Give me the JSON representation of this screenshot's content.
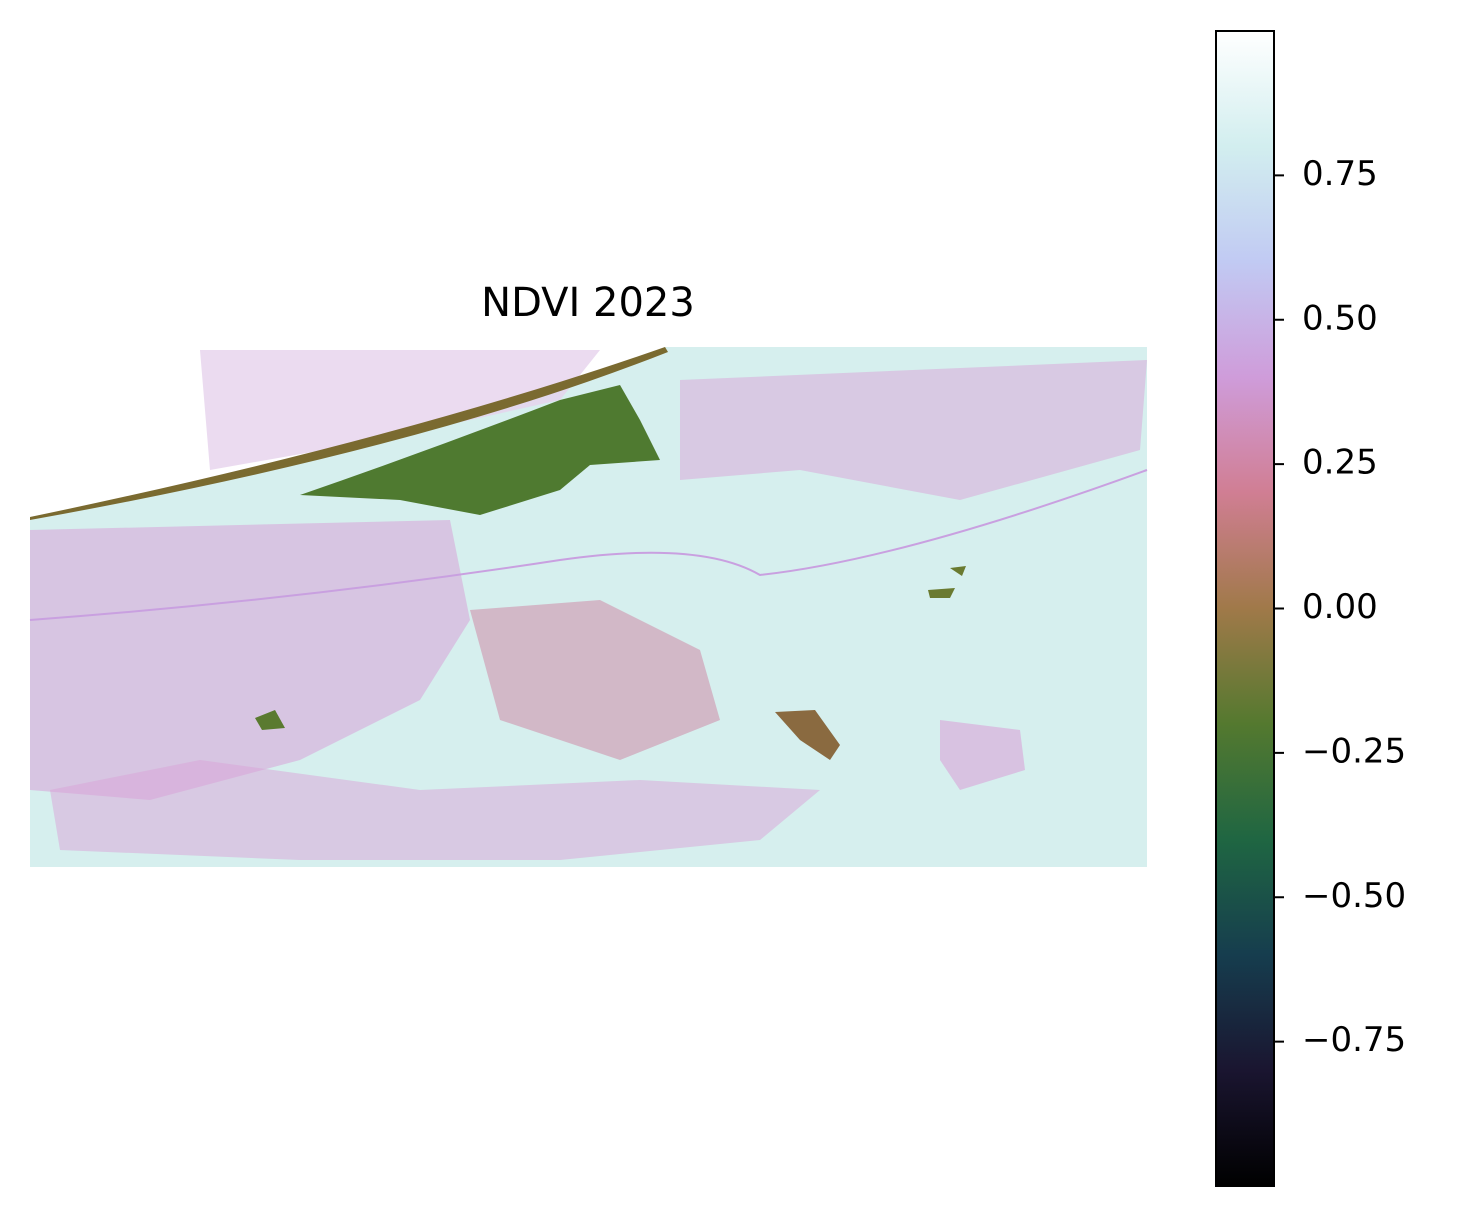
{
  "chart_data": {
    "type": "image",
    "title": "NDVI 2023",
    "colormap": "cubehelix",
    "clim": [
      -1.0,
      1.0
    ],
    "cticks": [
      {
        "value": -0.75,
        "label": "−0.75"
      },
      {
        "value": -0.5,
        "label": "−0.50"
      },
      {
        "value": -0.25,
        "label": "−0.25"
      },
      {
        "value": 0,
        "label": "0.00"
      },
      0.25,
      {
        "value": 0.5,
        "label": "0.50"
      },
      0.75
    ]
  }
}
